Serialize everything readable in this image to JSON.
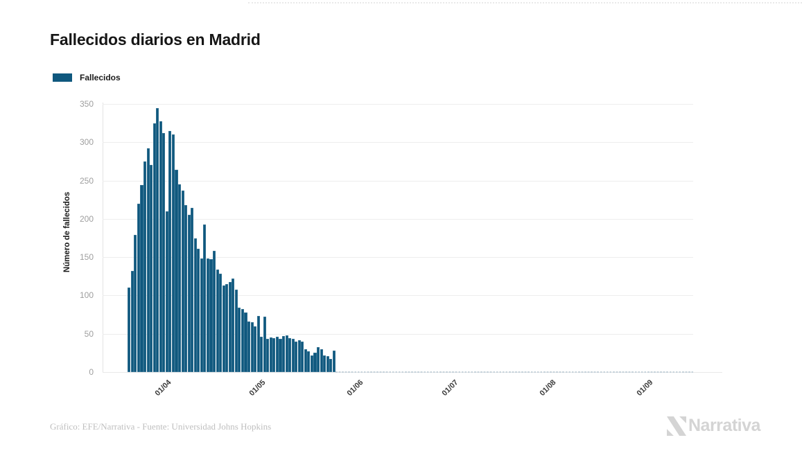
{
  "title": "Fallecidos diarios en Madrid",
  "legend": {
    "label": "Fallecidos",
    "swatch_color": "#0f587e"
  },
  "y_axis": {
    "label": "Número de fallecidos",
    "ticks": [
      350,
      300,
      250,
      200,
      150,
      100,
      50,
      0
    ]
  },
  "x_axis": {
    "ticks": [
      {
        "label": "01/04",
        "day_index": 12
      },
      {
        "label": "01/05",
        "day_index": 42
      },
      {
        "label": "01/06",
        "day_index": 73
      },
      {
        "label": "01/07",
        "day_index": 103
      },
      {
        "label": "01/08",
        "day_index": 134
      },
      {
        "label": "01/09",
        "day_index": 165
      }
    ]
  },
  "footer": {
    "credit": "Gráfico: EFE/Narrativa - Fuente: Universidad Johns Hopkins"
  },
  "brand": {
    "name": "Narrativa"
  },
  "colors": {
    "bar": "#0f587e",
    "grid": "#ededed",
    "axis_line": "#e3e3e3",
    "y_tick_text": "#9e9e9e",
    "x_tick_text": "#3a3a3a",
    "zero_dash": "#c6d2da",
    "footer_text": "#bfbfbf",
    "logo": "#d4d4d4"
  },
  "chart_data": {
    "type": "bar",
    "title": "Fallecidos diarios en Madrid",
    "series_name": "Fallecidos",
    "xlabel": "",
    "ylabel": "Número de fallecidos",
    "ylim": [
      0,
      350
    ],
    "grid": true,
    "legend_position": "top-left",
    "bar_color": "#0f587e",
    "x": [
      "20/03",
      "21/03",
      "22/03",
      "23/03",
      "24/03",
      "25/03",
      "26/03",
      "27/03",
      "28/03",
      "29/03",
      "30/03",
      "31/03",
      "01/04",
      "02/04",
      "03/04",
      "04/04",
      "05/04",
      "06/04",
      "07/04",
      "08/04",
      "09/04",
      "10/04",
      "11/04",
      "12/04",
      "13/04",
      "14/04",
      "15/04",
      "16/04",
      "17/04",
      "18/04",
      "19/04",
      "20/04",
      "21/04",
      "22/04",
      "23/04",
      "24/04",
      "25/04",
      "26/04",
      "27/04",
      "28/04",
      "29/04",
      "30/04",
      "01/05",
      "02/05",
      "03/05",
      "04/05",
      "05/05",
      "06/05",
      "07/05",
      "08/05",
      "09/05",
      "10/05",
      "11/05",
      "12/05",
      "13/05",
      "14/05",
      "15/05",
      "16/05",
      "17/05",
      "18/05",
      "19/05",
      "20/05",
      "21/05",
      "22/05",
      "23/05",
      "24/05"
    ],
    "values": [
      110,
      132,
      179,
      220,
      244,
      275,
      292,
      270,
      325,
      345,
      327,
      312,
      210,
      315,
      310,
      264,
      245,
      237,
      218,
      205,
      214,
      175,
      161,
      148,
      193,
      148,
      147,
      158,
      134,
      128,
      113,
      115,
      118,
      122,
      108,
      84,
      82,
      78,
      66,
      65,
      60,
      73,
      46,
      72,
      43,
      45,
      44,
      46,
      43,
      47,
      48,
      44,
      43,
      40,
      42,
      40,
      30,
      27,
      22,
      25,
      33,
      30,
      22,
      21,
      17,
      28
    ],
    "note": "Daily bars run 20/03–24/05; values are zero from 25/05 onward, shown as a dashed baseline until the axis end near 01/10."
  }
}
